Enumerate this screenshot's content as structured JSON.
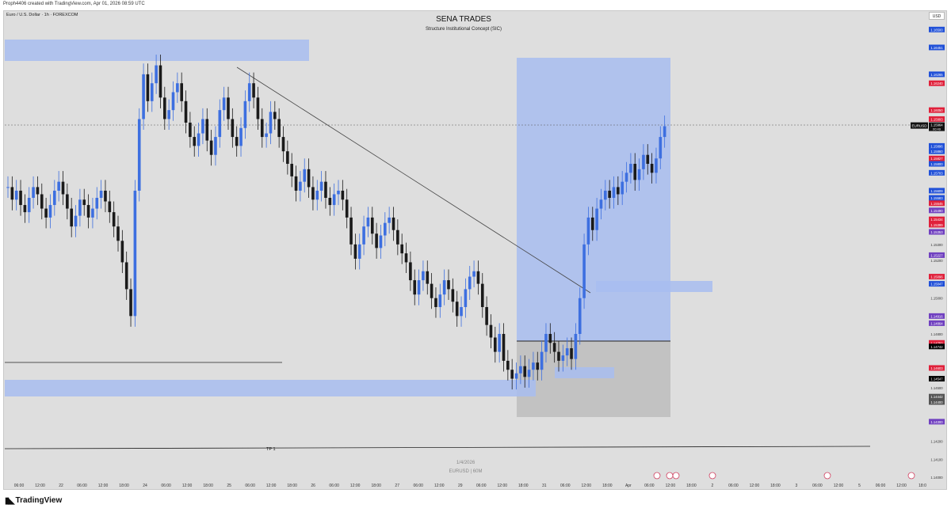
{
  "header": {
    "created_text": "Proph4406 created with TradingView.com, Apr 01, 2026 08:59 UTC",
    "symbol_text": "Euro / U.S. Dollar · 1h · FOREXCOM",
    "title": "SENA TRADES",
    "subtitle": "Structure Institutional Concept (SIC)",
    "currency": "USD"
  },
  "watermark": {
    "date": "1/4/2026",
    "symbol": "EURUSD | 60M"
  },
  "footer": {
    "brand": "TradingView"
  },
  "annotations": {
    "tp_label": "TP 1"
  },
  "colors": {
    "background": "#dedede",
    "bull": "#3d6fe0",
    "bear": "#1a1a1a",
    "zone": "#a8bdf0",
    "gray_zone": "#b8b8b8"
  },
  "chart_data": {
    "type": "candlestick",
    "symbol": "EURUSD",
    "timeframe": "1h",
    "ylim": [
      1.14,
      1.1655
    ],
    "current_price": 1.15964,
    "current_label": "EURUSD",
    "current_countdown": "00:49",
    "y_ticks": [
      {
        "value": 1.165,
        "label": "1.16500",
        "color": "#2050d8"
      },
      {
        "value": 1.164,
        "label": "1.16451",
        "color": "#2050d8"
      },
      {
        "value": 1.1625,
        "label": "1.16265",
        "color": "#2050d8"
      },
      {
        "value": 1.162,
        "label": "1.16240",
        "color": "#e0203a"
      },
      {
        "value": 1.1605,
        "label": "1.16050",
        "color": "#e0203a"
      },
      {
        "value": 1.16,
        "label": "1.15993",
        "color": "#e0203a"
      },
      {
        "value": 1.1585,
        "label": "1.15896",
        "color": "#2050d8"
      },
      {
        "value": 1.1582,
        "label": "1.15860",
        "color": "#2050d8"
      },
      {
        "value": 1.1578,
        "label": "1.15827",
        "color": "#e0203a"
      },
      {
        "value": 1.1575,
        "label": "1.15800",
        "color": "#2050d8"
      },
      {
        "value": 1.157,
        "label": "1.15703",
        "color": "#2050d8"
      },
      {
        "value": 1.156,
        "label": "1.15609",
        "color": "#2050d8"
      },
      {
        "value": 1.1556,
        "label": "1.15583",
        "color": "#2050d8"
      },
      {
        "value": 1.1553,
        "label": "1.15545",
        "color": "#e0203a"
      },
      {
        "value": 1.1549,
        "label": "1.15490",
        "color": "#7040c0"
      },
      {
        "value": 1.1544,
        "label": "1.15434",
        "color": "#e0203a"
      },
      {
        "value": 1.1541,
        "label": "1.15399",
        "color": "#e0203a"
      },
      {
        "value": 1.1537,
        "label": "1.15353",
        "color": "#7040c0"
      },
      {
        "value": 1.153,
        "label": "1.15300",
        "color": "none"
      },
      {
        "value": 1.1524,
        "label": "1.15227",
        "color": "#7040c0"
      },
      {
        "value": 1.1521,
        "label": "1.15200",
        "color": "none"
      },
      {
        "value": 1.1512,
        "label": "1.15096",
        "color": "#e0203a"
      },
      {
        "value": 1.1508,
        "label": "1.15047",
        "color": "#2050d8"
      },
      {
        "value": 1.15,
        "label": "1.15000",
        "color": "none"
      },
      {
        "value": 1.149,
        "label": "1.14916",
        "color": "#7040c0"
      },
      {
        "value": 1.1486,
        "label": "1.14864",
        "color": "#7040c0"
      },
      {
        "value": 1.148,
        "label": "1.14800",
        "color": "none"
      },
      {
        "value": 1.1475,
        "label": "1.14750",
        "color": "#e0203a"
      },
      {
        "value": 1.1473,
        "label": "1.14742",
        "color": "#000000"
      },
      {
        "value": 1.1461,
        "label": "1.14603",
        "color": "#e0203a"
      },
      {
        "value": 1.1455,
        "label": "1.14547",
        "color": "#000000"
      },
      {
        "value": 1.145,
        "label": "1.14500",
        "color": "none"
      },
      {
        "value": 1.1445,
        "label": "1.14442",
        "color": "#555555"
      },
      {
        "value": 1.1442,
        "label": "1.14400",
        "color": "#555555"
      },
      {
        "value": 1.1431,
        "label": "1.14300",
        "color": "#7040c0"
      },
      {
        "value": 1.142,
        "label": "1.14200",
        "color": "none"
      },
      {
        "value": 1.141,
        "label": "1.14100",
        "color": "none"
      },
      {
        "value": 1.14,
        "label": "1.14000",
        "color": "none"
      }
    ],
    "x_ticks": [
      "06:00",
      "12:00",
      "22",
      "06:00",
      "12:00",
      "18:00",
      "24",
      "06:00",
      "12:00",
      "18:00",
      "25",
      "06:00",
      "12:00",
      "18:00",
      "26",
      "06:00",
      "12:00",
      "18:00",
      "27",
      "06:00",
      "12:00",
      "29",
      "06:00",
      "12:00",
      "18:00",
      "31",
      "06:00",
      "12:00",
      "18:00",
      "Apr",
      "06:00",
      "12:00",
      "18:00",
      "2",
      "06:00",
      "12:00",
      "18:00",
      "3",
      "06:00",
      "12:00",
      "5",
      "06:00",
      "12:00",
      "18:0"
    ],
    "candles_close": [
      1.1562,
      1.1555,
      1.156,
      1.1552,
      1.1548,
      1.1556,
      1.1562,
      1.1558,
      1.155,
      1.1545,
      1.1552,
      1.156,
      1.1565,
      1.1558,
      1.155,
      1.154,
      1.1546,
      1.1555,
      1.1552,
      1.1545,
      1.155,
      1.1556,
      1.156,
      1.1554,
      1.1548,
      1.154,
      1.1532,
      1.152,
      1.1505,
      1.149,
      1.156,
      1.16,
      1.1625,
      1.161,
      1.162,
      1.163,
      1.1612,
      1.16,
      1.1605,
      1.1615,
      1.162,
      1.161,
      1.1598,
      1.159,
      1.1585,
      1.1592,
      1.16,
      1.1588,
      1.158,
      1.159,
      1.1605,
      1.1612,
      1.16,
      1.159,
      1.1585,
      1.1595,
      1.161,
      1.162,
      1.1612,
      1.16,
      1.159,
      1.1592,
      1.1604,
      1.16,
      1.159,
      1.1582,
      1.1575,
      1.1568,
      1.156,
      1.1565,
      1.1572,
      1.1562,
      1.1555,
      1.156,
      1.1565,
      1.1556,
      1.1552,
      1.1558,
      1.156,
      1.1555,
      1.1545,
      1.153,
      1.1522,
      1.153,
      1.154,
      1.1545,
      1.1536,
      1.1528,
      1.1535,
      1.1542,
      1.1545,
      1.1538,
      1.153,
      1.1525,
      1.152,
      1.151,
      1.1502,
      1.151,
      1.1515,
      1.1508,
      1.15,
      1.1495,
      1.1502,
      1.151,
      1.1505,
      1.1498,
      1.149,
      1.1495,
      1.1505,
      1.1512,
      1.1515,
      1.1508,
      1.1495,
      1.1485,
      1.1478,
      1.147,
      1.148,
      1.1465,
      1.146,
      1.1455,
      1.1458,
      1.1462,
      1.1456,
      1.146,
      1.1464,
      1.146,
      1.147,
      1.148,
      1.1475,
      1.147,
      1.1465,
      1.1468,
      1.1472,
      1.1466,
      1.148,
      1.15,
      1.153,
      1.1545,
      1.1538,
      1.155,
      1.1555,
      1.156,
      1.1556,
      1.1562,
      1.1558,
      1.1565,
      1.157,
      1.1575,
      1.1566,
      1.1572,
      1.158,
      1.1575,
      1.157,
      1.1578,
      1.159,
      1.1596
    ]
  }
}
